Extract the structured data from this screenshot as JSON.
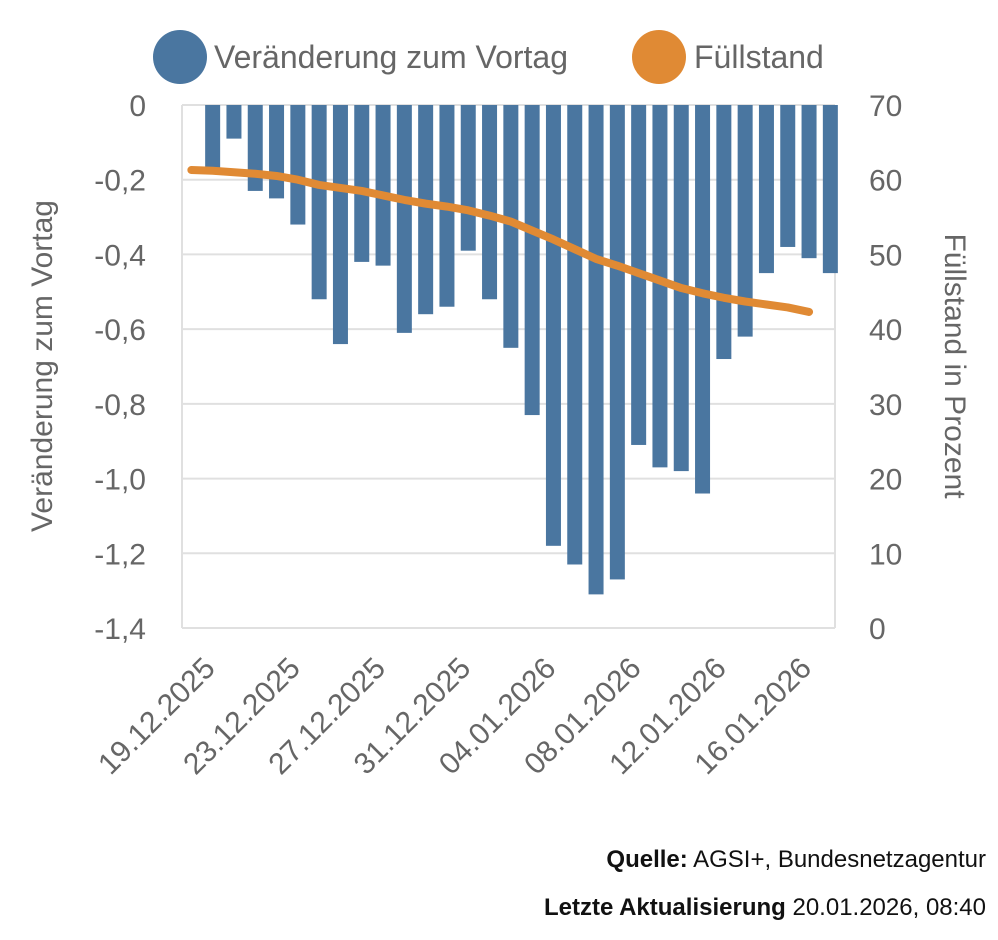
{
  "chart_data": {
    "type": "bar+line",
    "categories": [
      "19.12.2025",
      "20.12.2025",
      "21.12.2025",
      "22.12.2025",
      "23.12.2025",
      "24.12.2025",
      "25.12.2025",
      "26.12.2025",
      "27.12.2025",
      "28.12.2025",
      "29.12.2025",
      "30.12.2025",
      "31.12.2025",
      "01.01.2026",
      "02.01.2026",
      "03.01.2026",
      "04.01.2026",
      "05.01.2026",
      "06.01.2026",
      "07.01.2026",
      "08.01.2026",
      "09.01.2026",
      "10.01.2026",
      "11.01.2026",
      "12.01.2026",
      "13.01.2026",
      "14.01.2026",
      "15.01.2026",
      "16.01.2026",
      "17.01.2026"
    ],
    "tick_labels": [
      "19.12.2025",
      "23.12.2025",
      "27.12.2025",
      "31.12.2025",
      "04.01.2026",
      "08.01.2026",
      "12.01.2026",
      "16.01.2026"
    ],
    "series": [
      {
        "name": "Veränderung zum Vortag",
        "type": "bar",
        "axis": "left",
        "color": "#4a76a0",
        "values": [
          -0.17,
          -0.09,
          -0.23,
          -0.25,
          -0.32,
          -0.52,
          -0.64,
          -0.42,
          -0.43,
          -0.61,
          -0.56,
          -0.54,
          -0.39,
          -0.52,
          -0.65,
          -0.83,
          -1.18,
          -1.23,
          -1.31,
          -1.27,
          -0.91,
          -0.97,
          -0.98,
          -1.04,
          -0.68,
          -0.62,
          -0.45,
          -0.38,
          -0.41,
          -0.45
        ]
      },
      {
        "name": "Füllstand",
        "type": "line",
        "axis": "right",
        "color": "#e08a34",
        "values": [
          61.3,
          61.2,
          61.0,
          60.8,
          60.5,
          60.0,
          59.3,
          58.9,
          58.5,
          57.9,
          57.3,
          56.8,
          56.4,
          55.9,
          55.2,
          54.4,
          53.2,
          52.0,
          50.7,
          49.4,
          48.5,
          47.5,
          46.5,
          45.5,
          44.8,
          44.2,
          43.7,
          43.3,
          42.9,
          42.3
        ]
      }
    ],
    "ylabel": "Veränderung zum Vortag",
    "y2label": "Füllstand in Prozent",
    "ylim": [
      -1.4,
      0
    ],
    "yticks": [
      "0",
      "-0,2",
      "-0,4",
      "-0,6",
      "-0,8",
      "-1,0",
      "-1,2",
      "-1,4"
    ],
    "y2lim": [
      0,
      70
    ],
    "y2ticks": [
      "70",
      "60",
      "50",
      "40",
      "30",
      "20",
      "10",
      "0"
    ],
    "grid": true,
    "legend": "top"
  },
  "footer": {
    "source_label": "Quelle:",
    "source_value": "AGSI+, Bundesnetzagentur",
    "updated_label": "Letzte Aktualisierung",
    "updated_value": "20.01.2026, 08:40"
  }
}
